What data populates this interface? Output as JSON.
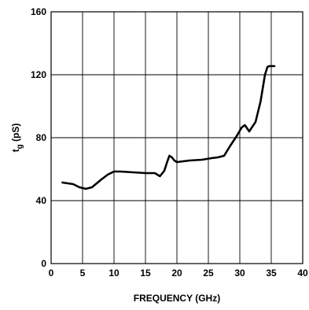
{
  "chart_data": {
    "type": "line",
    "title": "",
    "xlabel": "FREQUENCY (GHz)",
    "ylabel_main": "t",
    "ylabel_sub": "g",
    "ylabel_unit": " (pS)",
    "xlim": [
      0,
      40
    ],
    "ylim": [
      0,
      160
    ],
    "xticks": [
      0,
      5,
      10,
      15,
      20,
      25,
      30,
      35,
      40
    ],
    "yticks": [
      0,
      40,
      80,
      120,
      160
    ],
    "grid": true,
    "series": [
      {
        "color": "#000000",
        "x": [
          1.8,
          3.5,
          4.5,
          5.5,
          6.5,
          8,
          9,
          10,
          11,
          13,
          15,
          16.5,
          17.3,
          18,
          18.4,
          18.8,
          19.2,
          19.6,
          20,
          22,
          24,
          25.5,
          26.5,
          27.5,
          28.5,
          29.5,
          30.3,
          30.8,
          31.5,
          32.5,
          33.3,
          34,
          34.4,
          34.7,
          35,
          35.5
        ],
        "y": [
          51.5,
          50.5,
          48.5,
          47.5,
          48.5,
          53.5,
          56.5,
          58.5,
          58.5,
          58,
          57.5,
          57.5,
          55.5,
          59,
          64,
          68.5,
          67.5,
          65.5,
          64.5,
          65.5,
          66,
          67,
          67.5,
          68.5,
          75,
          81,
          86.5,
          88,
          84,
          90,
          103,
          120,
          125,
          125.5,
          125.5,
          125.5
        ]
      }
    ]
  }
}
